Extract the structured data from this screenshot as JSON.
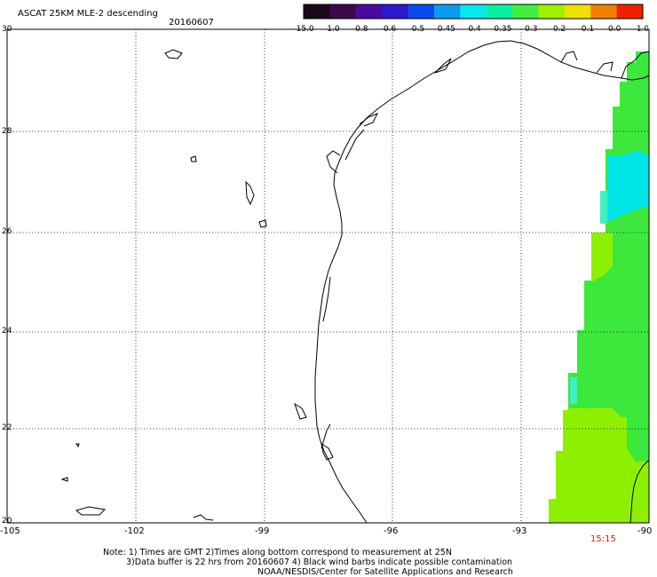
{
  "header": {
    "title": "ASCAT 25KM MLE-2 descending",
    "date": "20160607"
  },
  "colorbar": {
    "labels": [
      "-15.0",
      "-1.0",
      "-0.8",
      "-0.6",
      "-0.5",
      "-0.45",
      "-0.4",
      "-0.35",
      "-0.3",
      "-0.2",
      "-0.1",
      "0.0",
      "1.0"
    ],
    "colors": [
      "#1a0a1a",
      "#3a0a4a",
      "#4a0aa0",
      "#2a1acc",
      "#0a4af0",
      "#0a9cf0",
      "#0ae6f0",
      "#0af0a0",
      "#40f040",
      "#a0f000",
      "#f0e000",
      "#f08000",
      "#f02000"
    ]
  },
  "map": {
    "lon_labels": [
      "-105",
      "-102",
      "-99",
      "-96",
      "-93",
      "-90"
    ],
    "lat_labels": [
      "30",
      "28",
      "26",
      "24",
      "22",
      "20"
    ],
    "time_label": "15:15",
    "time_color": "#dd2200",
    "swath_colors": {
      "green_main": "#3ce83c",
      "yellow_green": "#8ef000",
      "cyan": "#00e6e6",
      "light_cyan": "#40f0c0"
    }
  },
  "notes": {
    "line1": "Note: 1) Times are GMT 2)Times along bottom correspond to measurement at 25N",
    "line2": "3)Data buffer is 22 hrs from 20160607 4) Black wind barbs indicate possible contamination",
    "line3": "NOAA/NESDIS/Center for Satellite Applications and Research"
  }
}
